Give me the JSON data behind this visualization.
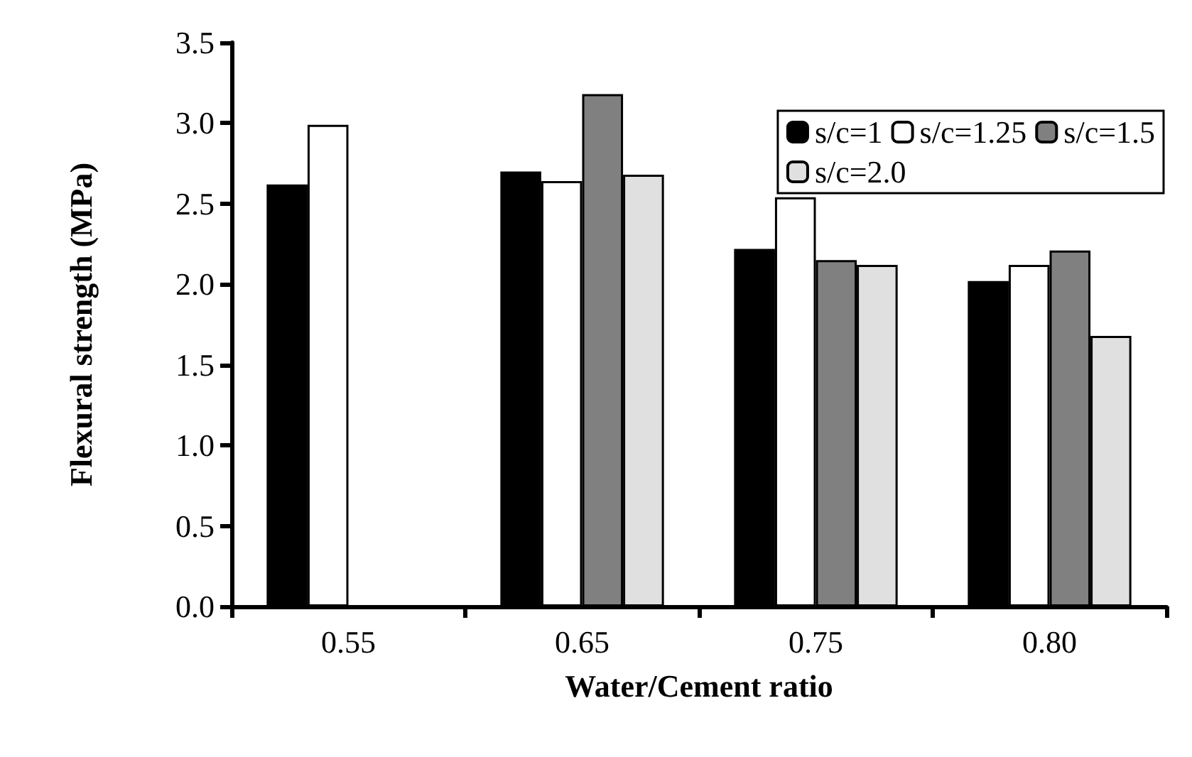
{
  "chart_data": {
    "type": "bar",
    "xlabel": "Water/Cement ratio",
    "ylabel": "Flexural strength (MPa)",
    "categories": [
      "0.55",
      "0.65",
      "0.75",
      "0.80"
    ],
    "series": [
      {
        "name": "s/c=1",
        "color": "#000000",
        "values": [
          2.62,
          2.7,
          2.22,
          2.02
        ]
      },
      {
        "name": "s/c=1.25",
        "color": "#ffffff",
        "values": [
          2.99,
          2.64,
          2.54,
          2.12
        ]
      },
      {
        "name": "s/c=1.5",
        "color": "#808080",
        "values": [
          null,
          3.18,
          2.15,
          2.21
        ]
      },
      {
        "name": "s/c=2.0",
        "color": "#e0e0e0",
        "values": [
          null,
          2.68,
          2.12,
          1.68
        ]
      }
    ],
    "ylim": [
      0,
      3.5
    ],
    "yticks": [
      {
        "value": 0,
        "label": "0.0"
      },
      {
        "value": 0.5,
        "label": "0.5"
      },
      {
        "value": 1,
        "label": "1.0"
      },
      {
        "value": 1.5,
        "label": "1.5"
      },
      {
        "value": 2,
        "label": "2.0"
      },
      {
        "value": 2.5,
        "label": "2.5"
      },
      {
        "value": 3,
        "label": "3.0"
      },
      {
        "value": 3.5,
        "label": "3.5"
      }
    ],
    "grid": false,
    "legend": "top right"
  }
}
